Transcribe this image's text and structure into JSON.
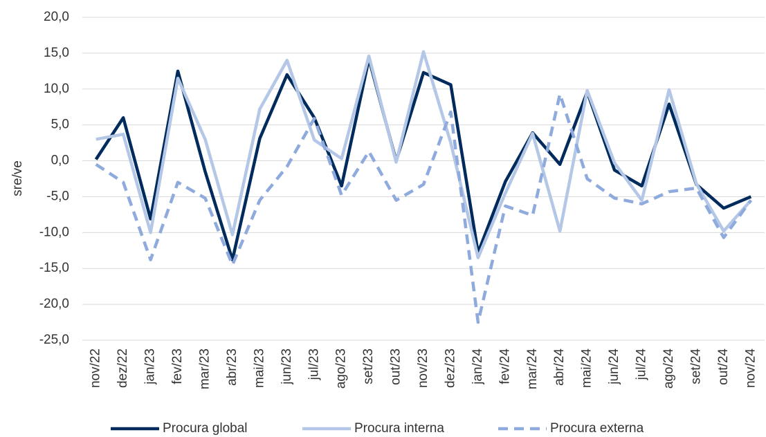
{
  "chart_data": {
    "type": "line",
    "y_label": "sre/ve",
    "categories": [
      "nov/22",
      "dez/22",
      "jan/23",
      "fev/23",
      "mar/23",
      "abr/23",
      "mai/23",
      "jun/23",
      "jul/23",
      "ago/23",
      "set/23",
      "out/23",
      "nov/23",
      "dez/23",
      "jan/24",
      "fev/24",
      "mar/24",
      "abr/24",
      "mai/24",
      "jun/24",
      "jul/24",
      "ago/24",
      "set/24",
      "out/24",
      "nov/24"
    ],
    "series": [
      {
        "name": "Procura global",
        "color": "#002b5c",
        "line_style": "solid",
        "values": [
          0.2,
          6.0,
          -8.1,
          12.5,
          -1.5,
          -13.8,
          3.1,
          12.0,
          6.0,
          -3.5,
          14.2,
          0.0,
          12.3,
          10.6,
          -12.8,
          -2.9,
          3.9,
          -0.5,
          9.6,
          -1.3,
          -3.5,
          7.9,
          -3.3,
          -6.6,
          -5.0
        ]
      },
      {
        "name": "Procura interna",
        "color": "#b4c7e7",
        "line_style": "solid",
        "values": [
          3.0,
          3.7,
          -10.0,
          11.5,
          3.0,
          -10.3,
          7.2,
          14.0,
          2.9,
          0.3,
          14.6,
          -0.2,
          15.2,
          2.5,
          -13.5,
          -4.5,
          3.8,
          -9.8,
          9.8,
          -0.3,
          -5.5,
          9.9,
          -3.2,
          -9.8,
          -5.5
        ]
      },
      {
        "name": "Procura externa",
        "color": "#8faadc",
        "line_style": "dashed",
        "values": [
          -0.5,
          -3.0,
          -13.8,
          -3.0,
          -5.2,
          -14.5,
          -5.5,
          -0.8,
          5.9,
          -4.8,
          1.3,
          -5.5,
          -3.3,
          6.8,
          -22.5,
          -6.3,
          -7.6,
          9.3,
          -2.5,
          -5.2,
          -6.0,
          -4.3,
          -3.8,
          -10.7,
          -5.5
        ]
      }
    ],
    "ylim": [
      -25,
      20
    ],
    "yticks": [
      {
        "value": -25,
        "label": "-25,0"
      },
      {
        "value": -20,
        "label": "-20,0"
      },
      {
        "value": -15,
        "label": "-15,0"
      },
      {
        "value": -10,
        "label": "-10,0"
      },
      {
        "value": -5,
        "label": "-5,0"
      },
      {
        "value": 0,
        "label": "0,0"
      },
      {
        "value": 5,
        "label": "5,0"
      },
      {
        "value": 10,
        "label": "10,0"
      },
      {
        "value": 15,
        "label": "15,0"
      },
      {
        "value": 20,
        "label": "20,0"
      }
    ],
    "grid": true,
    "legend": "bottom"
  }
}
